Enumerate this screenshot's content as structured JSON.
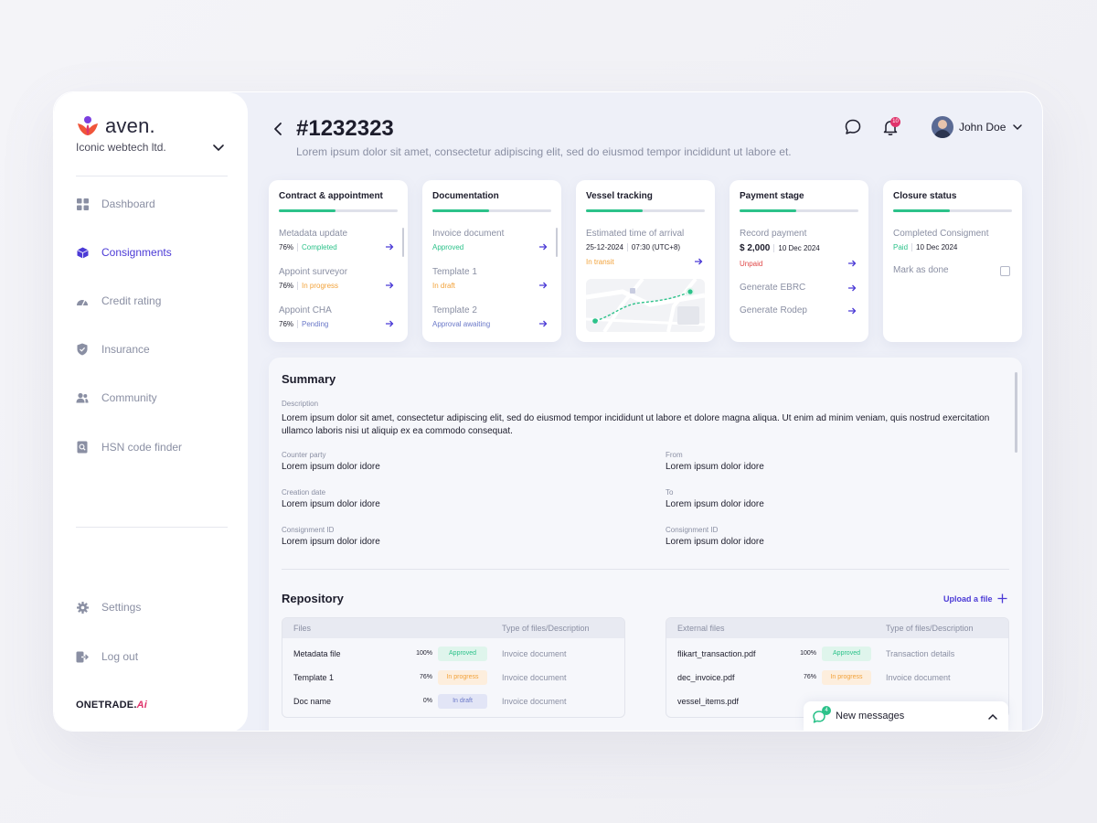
{
  "brand": {
    "name": "aven.",
    "company": "Iconic webtech ltd.",
    "footer_main": "ONETRADE.",
    "footer_ai": "Ai"
  },
  "sidebar": {
    "items": [
      {
        "label": "Dashboard",
        "icon": "grid-icon",
        "active": false
      },
      {
        "label": "Consignments",
        "icon": "cube-icon",
        "active": true
      },
      {
        "label": "Credit rating",
        "icon": "gauge-icon",
        "active": false
      },
      {
        "label": "Insurance",
        "icon": "shield-icon",
        "active": false
      },
      {
        "label": "Community",
        "icon": "users-icon",
        "active": false
      },
      {
        "label": "HSN code finder",
        "icon": "document-search-icon",
        "active": false
      }
    ],
    "bottom": [
      {
        "label": "Settings",
        "icon": "gear-icon"
      },
      {
        "label": "Log out",
        "icon": "logout-icon"
      }
    ]
  },
  "header": {
    "title": "#1232323",
    "subtitle": "Lorem ipsum dolor sit amet, consectetur adipiscing elit, sed do eiusmod tempor incididunt ut labore et.",
    "notification_count": "10",
    "user_name": "John Doe"
  },
  "stages": [
    {
      "title": "Contract & appointment",
      "progress": 0.48,
      "items": [
        {
          "label": "Metadata update",
          "pct": "76%",
          "status": "Completed",
          "status_color": "#2cc28a"
        },
        {
          "label": "Appoint surveyor",
          "pct": "76%",
          "status": "In progress",
          "status_color": "#f2a23a"
        },
        {
          "label": "Appoint CHA",
          "pct": "76%",
          "status": "Pending",
          "status_color": "#6a78c8"
        }
      ]
    },
    {
      "title": "Documentation",
      "progress": 0.48,
      "items": [
        {
          "label": "Invoice document",
          "status": "Approved",
          "status_color": "#2cc28a"
        },
        {
          "label": "Template 1",
          "status": "In draft",
          "status_color": "#f2a23a"
        },
        {
          "label": "Template 2",
          "status": "Approval awaiting",
          "status_color": "#6a78c8"
        }
      ]
    },
    {
      "title": "Vessel tracking",
      "progress": 0.48,
      "eta_label": "Estimated time of arrival",
      "eta_date": "25-12-2024",
      "eta_time": "07:30 (UTC+8)",
      "status": "In transit"
    },
    {
      "title": "Payment stage",
      "progress": 0.48,
      "record_label": "Record payment",
      "amount": "$ 2,000",
      "date": "10 Dec 2024",
      "status": "Unpaid",
      "links": [
        "Generate EBRC",
        "Generate Rodep"
      ]
    },
    {
      "title": "Closure status",
      "progress": 0.48,
      "completed_label": "Completed Consigment",
      "status": "Paid",
      "date": "10 Dec 2024",
      "mark_label": "Mark as done"
    }
  ],
  "summary": {
    "title": "Summary",
    "description_label": "Description",
    "description": "Lorem ipsum dolor sit amet, consectetur adipiscing elit, sed do eiusmod tempor incididunt ut labore et dolore magna aliqua. Ut enim ad minim veniam, quis nostrud exercitation ullamco laboris nisi ut aliquip ex ea commodo consequat.",
    "fields": [
      {
        "label": "Counter party",
        "value": "Lorem ipsum dolor idore"
      },
      {
        "label": "From",
        "value": "Lorem ipsum dolor idore"
      },
      {
        "label": "Creation date",
        "value": "Lorem ipsum dolor idore"
      },
      {
        "label": "To",
        "value": "Lorem ipsum dolor idore"
      },
      {
        "label": "Consignment ID",
        "value": "Lorem ipsum dolor idore"
      },
      {
        "label": "Consignment ID",
        "value": "Lorem ipsum dolor idore"
      }
    ]
  },
  "repository": {
    "title": "Repository",
    "upload_label": "Upload a file",
    "files": {
      "headers": [
        "Files",
        "Type of files/Description"
      ],
      "rows": [
        {
          "name": "Metadata file",
          "pct": "100%",
          "status": "Approved",
          "type": "Invoice document"
        },
        {
          "name": "Template 1",
          "pct": "76%",
          "status": "In progress",
          "type": "Invoice document"
        },
        {
          "name": "Doc name",
          "pct": "0%",
          "status": "In draft",
          "type": "Invoice document"
        }
      ]
    },
    "external": {
      "headers": [
        "External files",
        "Type of files/Description"
      ],
      "rows": [
        {
          "name": "flikart_transaction.pdf",
          "pct": "100%",
          "status": "Approved",
          "type": "Transaction details"
        },
        {
          "name": "dec_invoice.pdf",
          "pct": "76%",
          "status": "In progress",
          "type": "Invoice document"
        },
        {
          "name": "vessel_items.pdf",
          "pct": "",
          "status": "",
          "type": ""
        }
      ]
    }
  },
  "messages": {
    "label": "New messages",
    "count": "4"
  }
}
